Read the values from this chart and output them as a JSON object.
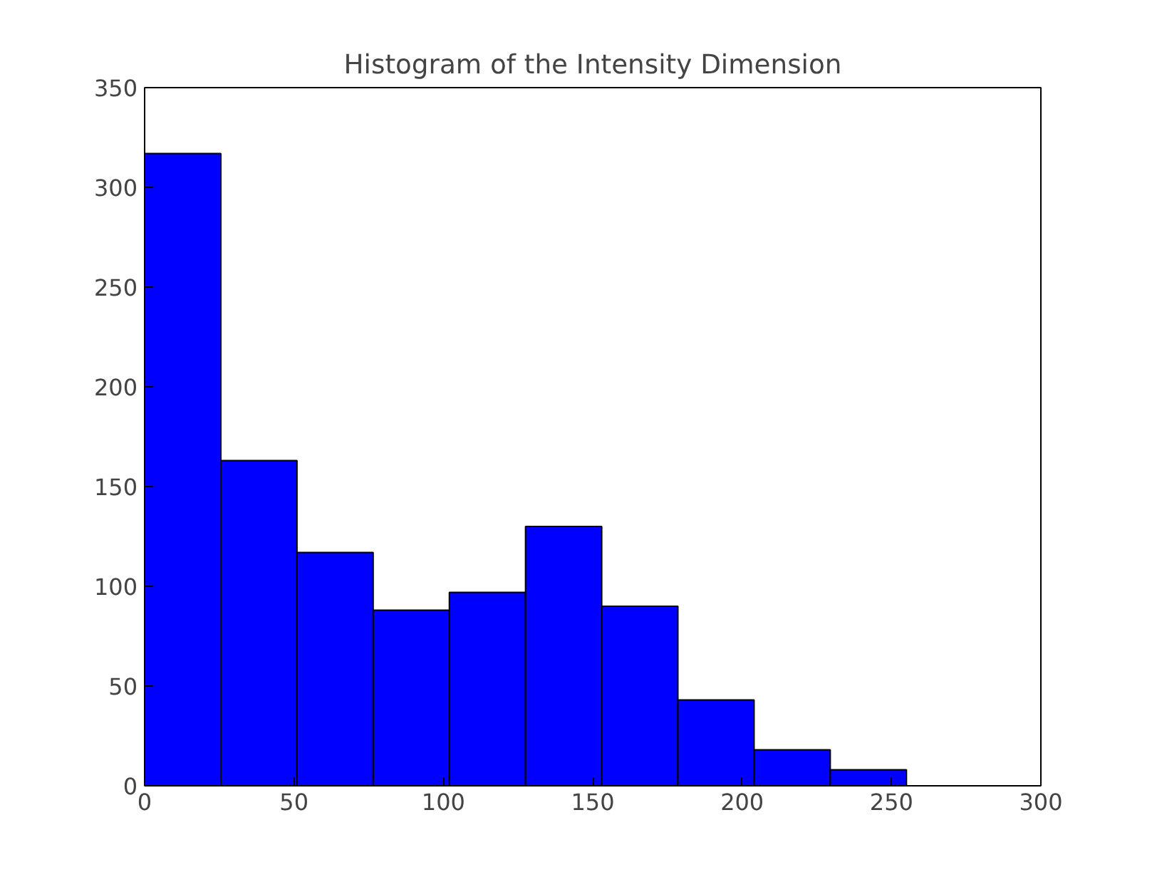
{
  "chart_data": {
    "type": "histogram",
    "title": "Histogram of the Intensity Dimension",
    "bins": [
      0,
      25.5,
      51,
      76.5,
      102,
      127.5,
      153,
      178.5,
      204,
      229.5,
      255
    ],
    "values": [
      317,
      163,
      117,
      88,
      97,
      130,
      90,
      43,
      18,
      8
    ],
    "color": "#0000ff",
    "xlim": [
      0,
      300
    ],
    "xticks": [
      0,
      50,
      100,
      150,
      200,
      250,
      300
    ],
    "ylim": [
      0,
      350
    ],
    "yticks": [
      0,
      50,
      100,
      150,
      200,
      250,
      300,
      350
    ],
    "grid": false
  }
}
